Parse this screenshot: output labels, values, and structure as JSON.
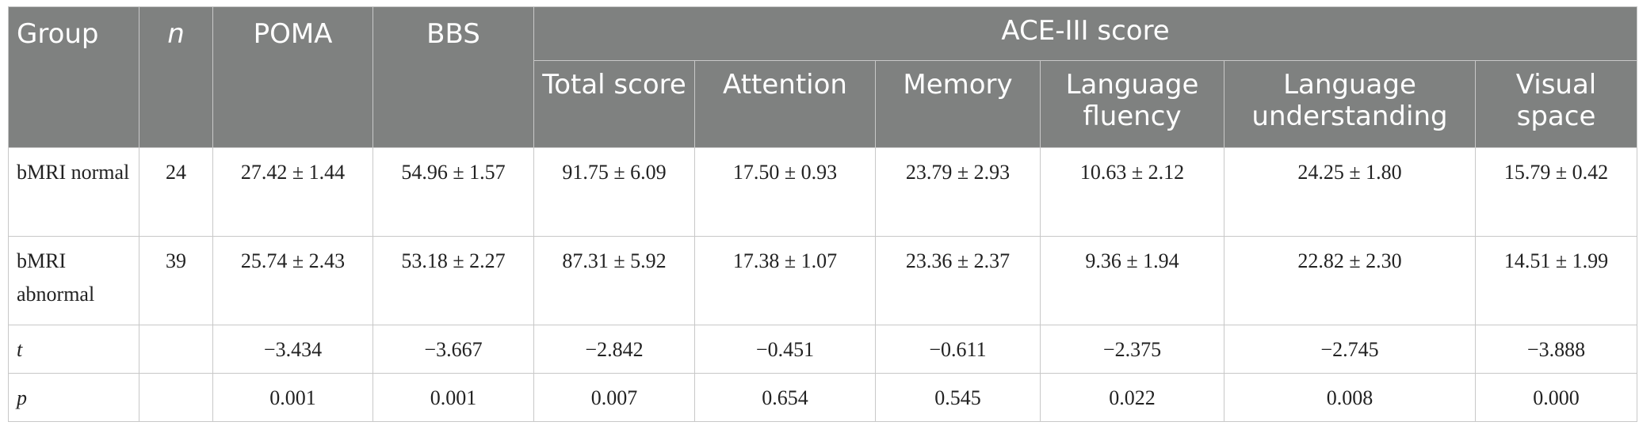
{
  "table": {
    "headers": {
      "group": "Group",
      "n": "n",
      "poma": "POMA",
      "bbs": "BBS",
      "ace_title": "ACE-III score",
      "ace_sub": [
        "Total score",
        "Attention",
        "Memory",
        "Language fluency",
        "Language understanding",
        "Visual space"
      ]
    },
    "rows": [
      {
        "group": "bMRI normal",
        "n": "24",
        "values": [
          "27.42 ± 1.44",
          "54.96 ± 1.57",
          "91.75 ± 6.09",
          "17.50 ± 0.93",
          "23.79 ± 2.93",
          "10.63 ± 2.12",
          "24.25 ± 1.80",
          "15.79 ± 0.42"
        ]
      },
      {
        "group": "bMRI abnormal",
        "n": "39",
        "values": [
          "25.74 ± 2.43",
          "53.18 ± 2.27",
          "87.31 ± 5.92",
          "17.38 ± 1.07",
          "23.36 ± 2.37",
          "9.36 ± 1.94",
          "22.82 ± 2.30",
          "14.51 ± 1.99"
        ]
      },
      {
        "group": "t",
        "n": "",
        "values": [
          "−3.434",
          "−3.667",
          "−2.842",
          "−0.451",
          "−0.611",
          "−2.375",
          "−2.745",
          "−3.888"
        ]
      },
      {
        "group": "p",
        "n": "",
        "values": [
          "0.001",
          "0.001",
          "0.007",
          "0.654",
          "0.545",
          "0.022",
          "0.008",
          "0.000"
        ]
      }
    ]
  }
}
